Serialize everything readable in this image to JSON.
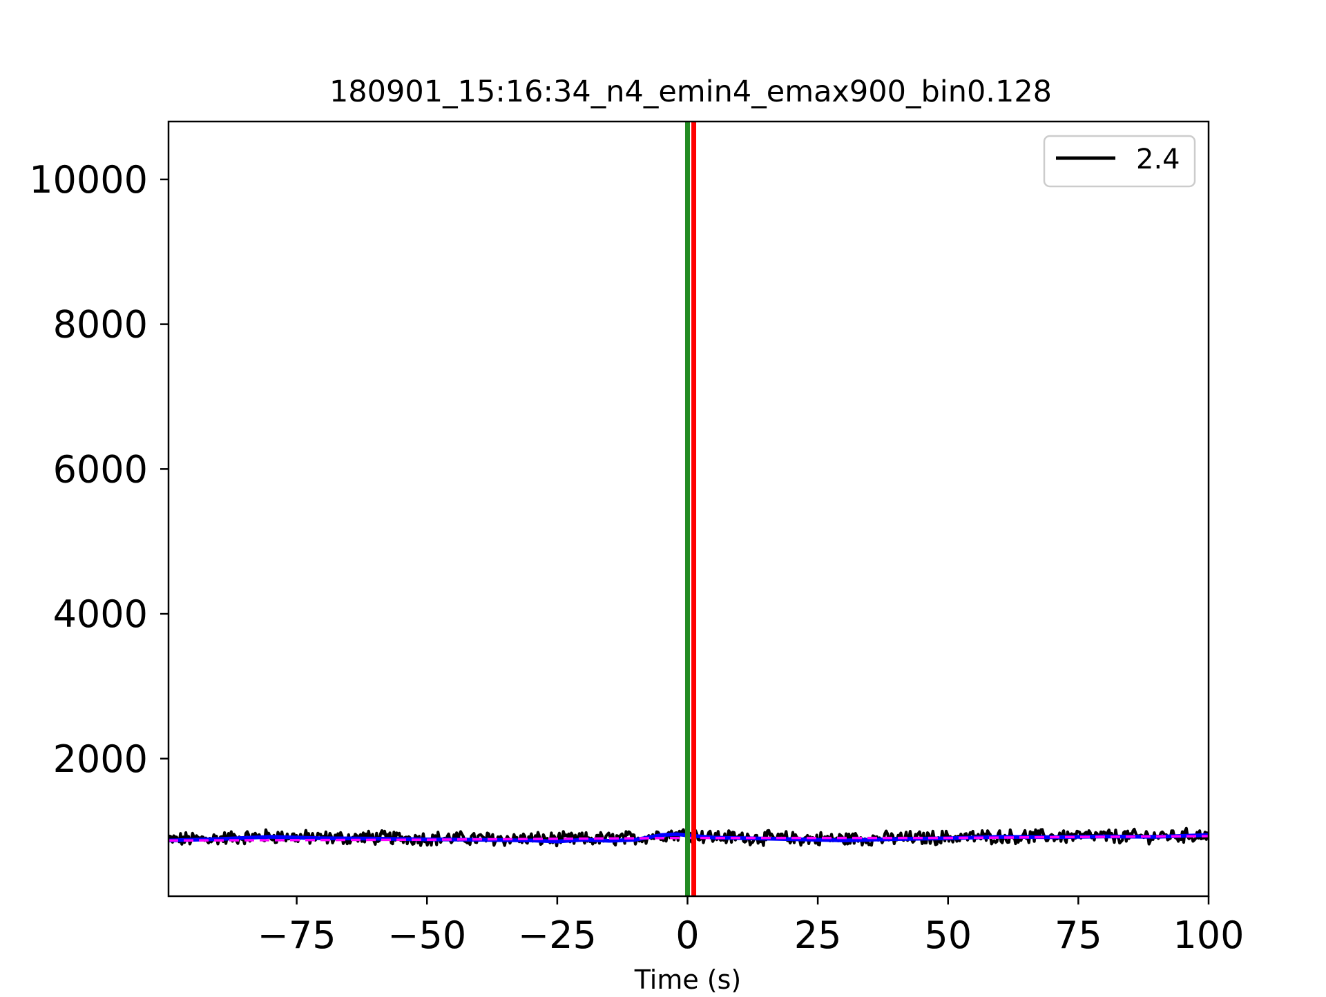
{
  "chart_data": {
    "type": "line",
    "title": "180901_15:16:34_n4_emin4_emax900_bin0.128",
    "xlabel": "Time (s)",
    "ylabel": "",
    "xlim": [
      -99.6,
      100
    ],
    "ylim": [
      100,
      10800
    ],
    "x_ticks": [
      -75,
      -50,
      -25,
      0,
      25,
      50,
      75,
      100
    ],
    "x_tick_labels": [
      "−75",
      "−50",
      "−25",
      "0",
      "25",
      "50",
      "75",
      "100"
    ],
    "y_ticks": [
      2000,
      4000,
      6000,
      8000,
      10000
    ],
    "y_tick_labels": [
      "2000",
      "4000",
      "6000",
      "8000",
      "10000"
    ],
    "legend": {
      "position": "top-right",
      "entries": [
        {
          "label": "2.4",
          "color": "#000000"
        }
      ]
    },
    "series": [
      {
        "name": "2.4",
        "style": "line",
        "color": "#000000",
        "baseline_points": [
          [
            -99.6,
            880
          ],
          [
            -90,
            900
          ],
          [
            -80,
            930
          ],
          [
            -70,
            905
          ],
          [
            -60,
            910
          ],
          [
            -50,
            900
          ],
          [
            -40,
            895
          ],
          [
            -30,
            890
          ],
          [
            -20,
            885
          ],
          [
            -10,
            905
          ],
          [
            -5,
            950
          ],
          [
            0,
            960
          ],
          [
            5,
            920
          ],
          [
            15,
            905
          ],
          [
            25,
            890
          ],
          [
            35,
            895
          ],
          [
            45,
            905
          ],
          [
            55,
            920
          ],
          [
            65,
            925
          ],
          [
            75,
            930
          ],
          [
            85,
            925
          ],
          [
            95,
            935
          ],
          [
            100,
            950
          ]
        ],
        "noise_amplitude": 85
      },
      {
        "style": "line",
        "color": "#0000ff",
        "points": [
          [
            -99.6,
            870
          ],
          [
            -90,
            890
          ],
          [
            -80,
            920
          ],
          [
            -70,
            900
          ],
          [
            -60,
            895
          ],
          [
            -50,
            885
          ],
          [
            -40,
            880
          ],
          [
            -30,
            870
          ],
          [
            -25,
            855
          ],
          [
            -20,
            880
          ],
          [
            -15,
            865
          ],
          [
            -10,
            880
          ],
          [
            -5,
            945
          ],
          [
            -2,
            955
          ],
          [
            0,
            940
          ],
          [
            5,
            910
          ],
          [
            15,
            895
          ],
          [
            25,
            880
          ],
          [
            30,
            870
          ],
          [
            40,
            890
          ],
          [
            50,
            900
          ],
          [
            60,
            920
          ],
          [
            70,
            915
          ],
          [
            80,
            925
          ],
          [
            90,
            920
          ],
          [
            100,
            945
          ]
        ]
      },
      {
        "style": "dashed",
        "color": "#ff00ff",
        "points": [
          [
            -99.6,
            870
          ],
          [
            -50,
            880
          ],
          [
            0,
            905
          ],
          [
            50,
            905
          ],
          [
            100,
            930
          ]
        ]
      }
    ],
    "vertical_lines": [
      {
        "x": 0,
        "color": "#228b22"
      },
      {
        "x": 1.2,
        "color": "#ff0000"
      }
    ]
  }
}
